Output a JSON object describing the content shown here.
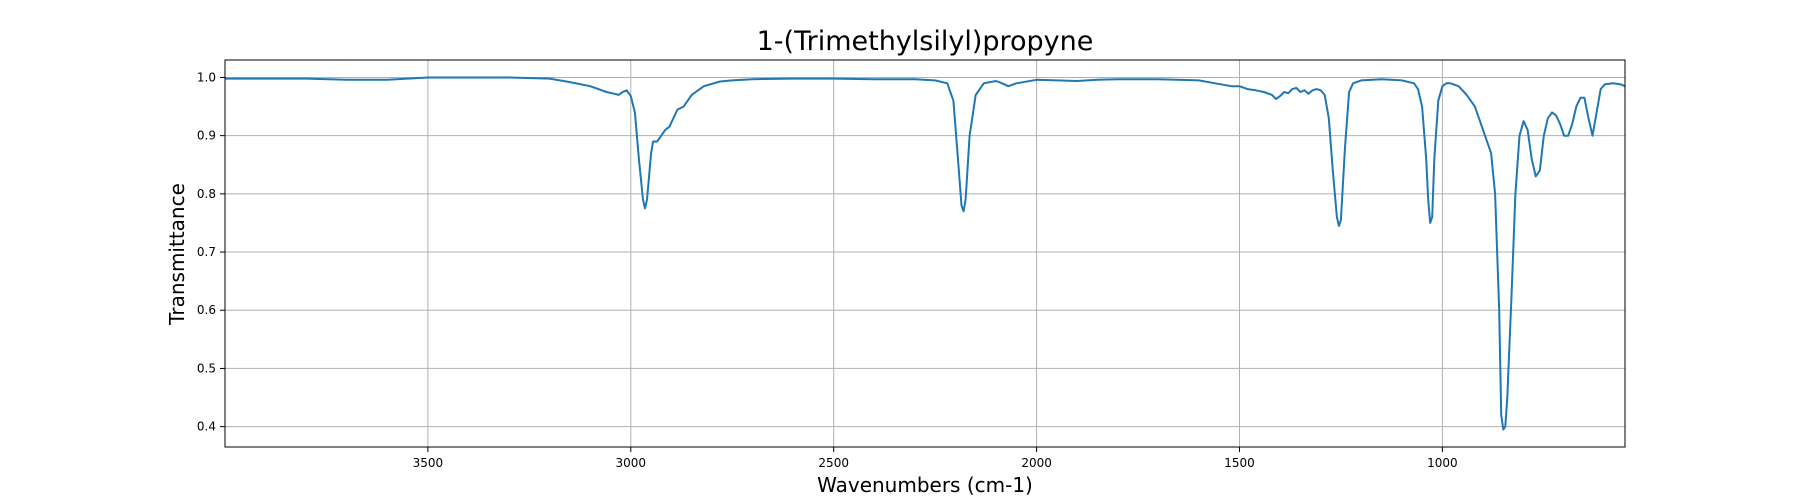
{
  "chart_data": {
    "type": "line",
    "title": "1-(Trimethylsilyl)propyne",
    "xlabel": "Wavenumbers (cm-1)",
    "ylabel": "Transmittance",
    "xlim": [
      4000,
      550
    ],
    "ylim": [
      0.365,
      1.03
    ],
    "x_reversed": true,
    "grid": true,
    "xticks": [
      3500,
      3000,
      2500,
      2000,
      1500,
      1000
    ],
    "yticks": [
      0.4,
      0.5,
      0.6,
      0.7,
      0.8,
      0.9,
      1.0
    ],
    "ytick_labels": [
      "0.4",
      "0.5",
      "0.6",
      "0.7",
      "0.8",
      "0.9",
      "1.0"
    ],
    "line_color": "#1f77b4",
    "series": [
      {
        "x": [
          4000,
          3900,
          3800,
          3700,
          3600,
          3500,
          3400,
          3300,
          3200,
          3150,
          3100,
          3080,
          3060,
          3040,
          3030,
          3020,
          3010,
          3000,
          2990,
          2980,
          2970,
          2965,
          2960,
          2950,
          2945,
          2935,
          2925,
          2915,
          2905,
          2895,
          2885,
          2870,
          2850,
          2820,
          2780,
          2750,
          2700,
          2600,
          2500,
          2400,
          2300,
          2250,
          2220,
          2205,
          2195,
          2185,
          2180,
          2175,
          2165,
          2150,
          2130,
          2100,
          2085,
          2070,
          2050,
          2000,
          1950,
          1900,
          1850,
          1800,
          1700,
          1600,
          1560,
          1520,
          1500,
          1480,
          1460,
          1440,
          1420,
          1410,
          1400,
          1390,
          1380,
          1370,
          1360,
          1350,
          1340,
          1330,
          1320,
          1310,
          1300,
          1290,
          1280,
          1270,
          1260,
          1255,
          1250,
          1240,
          1230,
          1220,
          1200,
          1150,
          1100,
          1070,
          1060,
          1050,
          1040,
          1035,
          1030,
          1025,
          1020,
          1010,
          1000,
          990,
          980,
          960,
          940,
          920,
          900,
          880,
          870,
          860,
          855,
          850,
          845,
          840,
          830,
          820,
          810,
          800,
          790,
          780,
          770,
          760,
          750,
          740,
          730,
          720,
          710,
          700,
          690,
          680,
          670,
          660,
          650,
          640,
          630,
          620,
          610,
          600,
          580,
          560,
          550
        ],
        "y": [
          0.998,
          0.998,
          0.998,
          0.996,
          0.996,
          1.0,
          1.0,
          1.0,
          0.998,
          0.992,
          0.985,
          0.98,
          0.975,
          0.972,
          0.97,
          0.975,
          0.978,
          0.968,
          0.94,
          0.86,
          0.79,
          0.775,
          0.79,
          0.87,
          0.89,
          0.89,
          0.9,
          0.91,
          0.915,
          0.93,
          0.945,
          0.95,
          0.97,
          0.985,
          0.993,
          0.995,
          0.997,
          0.998,
          0.998,
          0.997,
          0.997,
          0.995,
          0.99,
          0.96,
          0.87,
          0.78,
          0.77,
          0.79,
          0.9,
          0.97,
          0.99,
          0.994,
          0.99,
          0.985,
          0.99,
          0.996,
          0.995,
          0.994,
          0.996,
          0.997,
          0.997,
          0.995,
          0.99,
          0.985,
          0.985,
          0.98,
          0.978,
          0.975,
          0.97,
          0.963,
          0.968,
          0.975,
          0.973,
          0.98,
          0.982,
          0.975,
          0.978,
          0.972,
          0.978,
          0.98,
          0.978,
          0.97,
          0.93,
          0.84,
          0.76,
          0.745,
          0.755,
          0.88,
          0.975,
          0.99,
          0.995,
          0.997,
          0.995,
          0.99,
          0.98,
          0.95,
          0.86,
          0.79,
          0.75,
          0.76,
          0.86,
          0.96,
          0.985,
          0.99,
          0.99,
          0.985,
          0.97,
          0.95,
          0.91,
          0.87,
          0.8,
          0.6,
          0.42,
          0.395,
          0.4,
          0.45,
          0.62,
          0.8,
          0.9,
          0.925,
          0.91,
          0.86,
          0.83,
          0.84,
          0.9,
          0.93,
          0.94,
          0.935,
          0.92,
          0.9,
          0.9,
          0.92,
          0.95,
          0.965,
          0.965,
          0.93,
          0.9,
          0.94,
          0.98,
          0.988,
          0.99,
          0.988,
          0.985
        ]
      }
    ]
  }
}
